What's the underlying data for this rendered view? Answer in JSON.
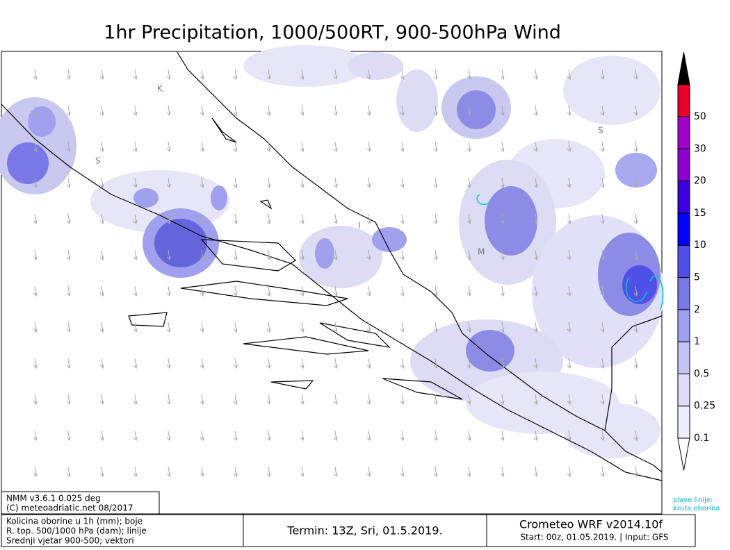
{
  "header": {
    "title": "1hr Precipitation, 1000/500RT, 900-500hPa Wind"
  },
  "map": {
    "labels": [
      "K",
      "S",
      "S",
      "I",
      "M"
    ]
  },
  "colorbar": {
    "levels": [
      0.1,
      0.25,
      0.5,
      1,
      2,
      5,
      10,
      15,
      20,
      30,
      50
    ],
    "colors": [
      "#ffffff",
      "#eeeefc",
      "#dcdcf8",
      "#c4c4f4",
      "#a0a0ee",
      "#7878e6",
      "#5050e8",
      "#0000ff",
      "#3c00dc",
      "#8c00d2",
      "#a000c8",
      "#e6002a"
    ]
  },
  "notes": {
    "line1": "plave linije:",
    "line2": "kruta oborina"
  },
  "footer": {
    "model": "NMM v3.6.1 0.025 deg",
    "copyright": "(C) meteoadriatic.net 08/2017",
    "legend": [
      "Kolicina oborine u 1h (mm); boje",
      "R. top. 500/1000 hPa (dam); linije",
      "Srednji vjetar 900-500; vektori"
    ],
    "termin": "Termin: 13Z, Sri, 01.5.2019.",
    "product": "Crometeo WRF v2014.10f",
    "start": "Start: 00z, 01.05.2019. | Input: GFS"
  }
}
